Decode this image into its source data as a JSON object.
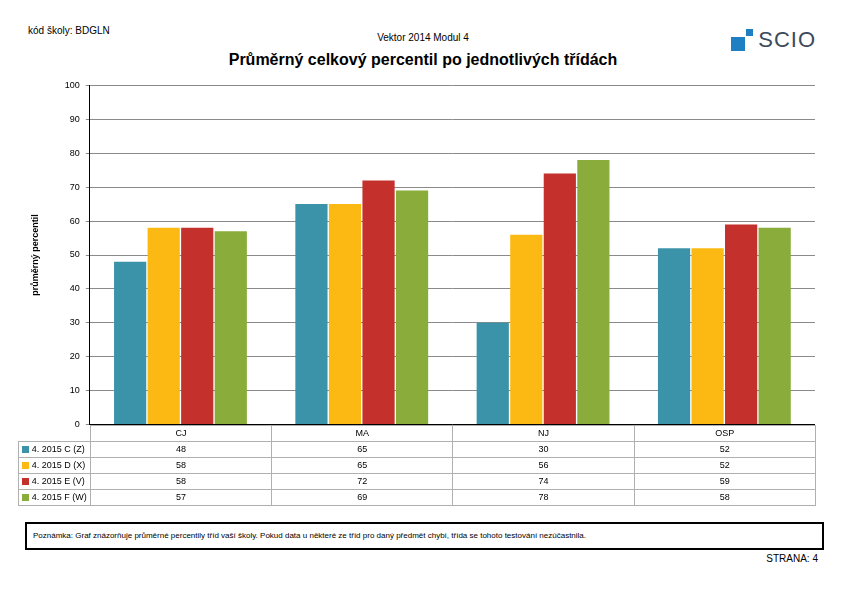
{
  "header": {
    "school_code": "kód školy: BDGLN",
    "subtitle": "Vektor 2014 Modul 4",
    "logo": "SCIO"
  },
  "chart_data": {
    "type": "bar",
    "title": "Průměrný celkový percentil po jednotlivých třídách",
    "y_label": "průměrný percentil",
    "categories": [
      "CJ",
      "MA",
      "NJ",
      "OSP"
    ],
    "series": [
      {
        "name": "4. 2015 C (Z)",
        "color": "#3a93a8",
        "values": [
          48,
          65,
          30,
          52
        ]
      },
      {
        "name": "4. 2015 D (X)",
        "color": "#fdb913",
        "values": [
          58,
          65,
          56,
          52
        ]
      },
      {
        "name": "4. 2015 E (V)",
        "color": "#c4302b",
        "values": [
          58,
          72,
          74,
          59
        ]
      },
      {
        "name": "4. 2015 F (W)",
        "color": "#8aac3a",
        "values": [
          57,
          69,
          78,
          58
        ]
      }
    ],
    "ylim": [
      0,
      100
    ],
    "yticks": [
      0,
      10,
      20,
      30,
      40,
      50,
      60,
      70,
      80,
      90,
      100
    ],
    "grid": true
  },
  "note": "Poznámka: Graf znázorňuje průměrné percentily tříd vaší školy. Pokud data u některé ze tříd pro daný předmět chybí, třída se tohoto testování nezúčastnila.",
  "page": "STRANA: 4"
}
